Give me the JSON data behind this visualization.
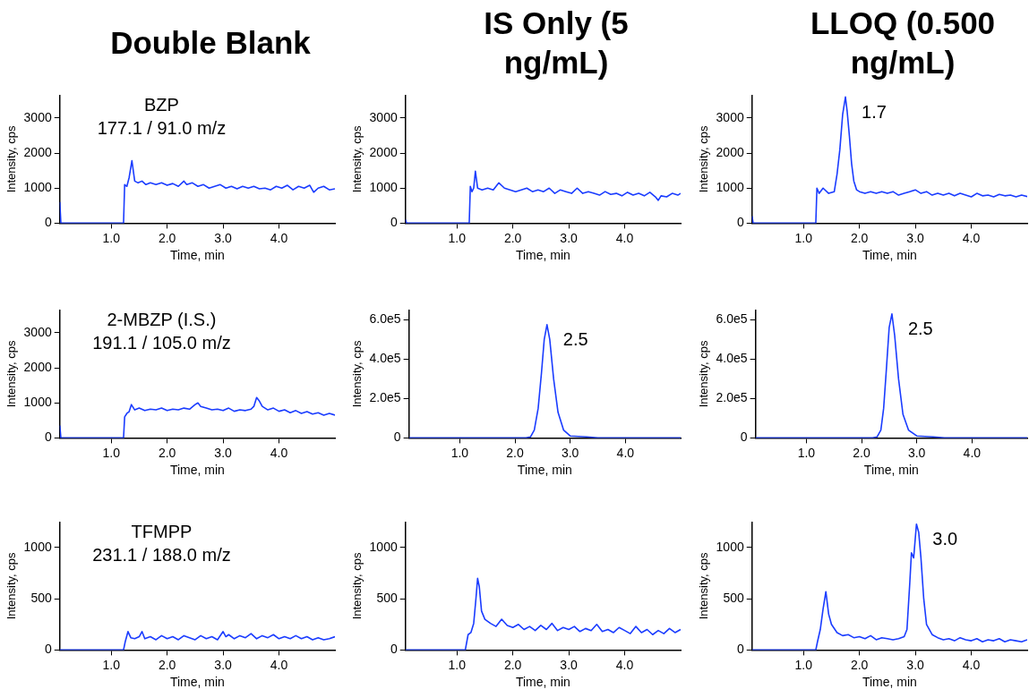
{
  "chart_data": [
    {
      "type": "line",
      "title": "Double Blank",
      "xlabel": "Time, min",
      "ylabel": "Intensity, cps",
      "color": "#1a3cff",
      "xlim": [
        0.08,
        5.0
      ],
      "ylim": [
        0,
        3650
      ],
      "xticks": [
        {
          "value": 1,
          "label": "1.0"
        },
        {
          "value": 2,
          "label": "2.0"
        },
        {
          "value": 3,
          "label": "3.0"
        },
        {
          "value": 4,
          "label": "4.0"
        }
      ],
      "yticks": [
        0,
        1000,
        2000,
        3000
      ],
      "annotations": [
        "BZP",
        "177.1 / 91.0 m/z"
      ],
      "x": [
        0.08,
        0.1,
        1.22,
        1.24,
        1.28,
        1.32,
        1.37,
        1.42,
        1.48,
        1.55,
        1.62,
        1.7,
        1.8,
        1.9,
        2.0,
        2.1,
        2.2,
        2.3,
        2.35,
        2.45,
        2.55,
        2.65,
        2.75,
        2.85,
        2.95,
        3.05,
        3.15,
        3.25,
        3.35,
        3.45,
        3.55,
        3.65,
        3.75,
        3.85,
        3.95,
        4.05,
        4.15,
        4.25,
        4.35,
        4.45,
        4.55,
        4.62,
        4.7,
        4.8,
        4.9,
        5.0
      ],
      "values": [
        600,
        0,
        0,
        1100,
        1050,
        1300,
        1780,
        1200,
        1150,
        1200,
        1100,
        1150,
        1100,
        1150,
        1080,
        1130,
        1050,
        1200,
        1100,
        1150,
        1050,
        1100,
        1000,
        1050,
        1100,
        1000,
        1050,
        980,
        1050,
        1000,
        1050,
        980,
        1000,
        950,
        1050,
        1000,
        1080,
        950,
        1050,
        1000,
        1080,
        880,
        1000,
        1050,
        950,
        980
      ]
    },
    {
      "type": "line",
      "title": "IS Only (5 ng/mL)",
      "xlabel": "Time, min",
      "ylabel": "Intensity, cps",
      "color": "#1a3cff",
      "xlim": [
        0.08,
        5.0
      ],
      "ylim": [
        0,
        3650
      ],
      "xticks": [
        {
          "value": 1,
          "label": "1.0"
        },
        {
          "value": 2,
          "label": "2.0"
        },
        {
          "value": 3,
          "label": "3.0"
        },
        {
          "value": 4,
          "label": "4.0"
        }
      ],
      "yticks": [
        0,
        1000,
        2000,
        3000
      ],
      "x": [
        0.08,
        0.1,
        1.22,
        1.24,
        1.27,
        1.3,
        1.33,
        1.37,
        1.45,
        1.55,
        1.65,
        1.75,
        1.85,
        1.95,
        2.05,
        2.15,
        2.25,
        2.35,
        2.45,
        2.55,
        2.65,
        2.75,
        2.85,
        2.95,
        3.05,
        3.15,
        3.25,
        3.35,
        3.45,
        3.55,
        3.65,
        3.75,
        3.85,
        3.95,
        4.05,
        4.15,
        4.25,
        4.35,
        4.45,
        4.55,
        4.6,
        4.65,
        4.75,
        4.85,
        4.95,
        5.0
      ],
      "values": [
        100,
        0,
        0,
        1050,
        900,
        1000,
        1480,
        1000,
        950,
        1000,
        950,
        1150,
        1000,
        950,
        900,
        950,
        1000,
        900,
        950,
        900,
        1000,
        850,
        950,
        900,
        850,
        1000,
        850,
        900,
        850,
        800,
        900,
        820,
        850,
        780,
        880,
        800,
        850,
        780,
        880,
        750,
        650,
        780,
        750,
        850,
        800,
        850
      ]
    },
    {
      "type": "line",
      "title": "LLOQ (0.500 ng/mL)",
      "xlabel": "Time, min",
      "ylabel": "Intensity, cps",
      "color": "#1a3cff",
      "xlim": [
        0.08,
        5.0
      ],
      "ylim": [
        0,
        3650
      ],
      "xticks": [
        {
          "value": 1,
          "label": "1.0"
        },
        {
          "value": 2,
          "label": "2.0"
        },
        {
          "value": 3,
          "label": "3.0"
        },
        {
          "value": 4,
          "label": "4.0"
        }
      ],
      "yticks": [
        0,
        1000,
        2000,
        3000
      ],
      "annotations": [
        {
          "text": "1.7",
          "x": 1.75,
          "y": 3600
        }
      ],
      "x": [
        0.08,
        0.1,
        1.22,
        1.24,
        1.28,
        1.35,
        1.45,
        1.55,
        1.6,
        1.65,
        1.7,
        1.75,
        1.78,
        1.82,
        1.86,
        1.9,
        1.95,
        2.0,
        2.1,
        2.2,
        2.3,
        2.4,
        2.5,
        2.6,
        2.7,
        2.8,
        2.9,
        3.0,
        3.1,
        3.2,
        3.3,
        3.4,
        3.5,
        3.6,
        3.7,
        3.8,
        3.9,
        4.0,
        4.1,
        4.2,
        4.3,
        4.4,
        4.5,
        4.6,
        4.7,
        4.8,
        4.9,
        5.0
      ],
      "values": [
        200,
        0,
        0,
        1000,
        850,
        1000,
        850,
        900,
        1400,
        2100,
        3100,
        3600,
        3200,
        2500,
        1700,
        1200,
        950,
        900,
        850,
        900,
        850,
        900,
        850,
        900,
        800,
        850,
        900,
        950,
        850,
        900,
        800,
        850,
        800,
        850,
        780,
        850,
        800,
        750,
        850,
        780,
        800,
        750,
        820,
        780,
        800,
        750,
        800,
        760
      ]
    },
    {
      "type": "line",
      "xlabel": "Time, min",
      "ylabel": "Intensity, cps",
      "color": "#1a3cff",
      "xlim": [
        0.08,
        5.0
      ],
      "ylim": [
        0,
        3650
      ],
      "xticks": [
        {
          "value": 1,
          "label": "1.0"
        },
        {
          "value": 2,
          "label": "2.0"
        },
        {
          "value": 3,
          "label": "3.0"
        },
        {
          "value": 4,
          "label": "4.0"
        }
      ],
      "yticks": [
        0,
        1000,
        2000,
        3000
      ],
      "annotations": [
        "2-MBZP (I.S.)",
        "191.1 / 105.0 m/z"
      ],
      "x": [
        0.08,
        0.1,
        1.22,
        1.24,
        1.28,
        1.32,
        1.36,
        1.42,
        1.5,
        1.6,
        1.7,
        1.8,
        1.9,
        2.0,
        2.1,
        2.2,
        2.3,
        2.4,
        2.5,
        2.55,
        2.6,
        2.7,
        2.8,
        2.9,
        3.0,
        3.1,
        3.2,
        3.3,
        3.4,
        3.5,
        3.55,
        3.6,
        3.65,
        3.7,
        3.8,
        3.9,
        4.0,
        4.1,
        4.2,
        4.3,
        4.4,
        4.5,
        4.6,
        4.7,
        4.8,
        4.9,
        5.0
      ],
      "values": [
        350,
        0,
        0,
        600,
        700,
        750,
        950,
        800,
        850,
        780,
        820,
        800,
        850,
        780,
        820,
        800,
        850,
        820,
        950,
        1000,
        900,
        850,
        800,
        820,
        780,
        850,
        760,
        800,
        780,
        820,
        900,
        1150,
        1050,
        900,
        800,
        850,
        760,
        800,
        720,
        780,
        700,
        750,
        680,
        720,
        650,
        700,
        650
      ]
    },
    {
      "type": "line",
      "xlabel": "Time, min",
      "ylabel": "Intensity, cps",
      "color": "#1a3cff",
      "xlim": [
        0.08,
        5.0
      ],
      "ylim": [
        0,
        650000
      ],
      "xticks": [
        {
          "value": 1,
          "label": "1.0"
        },
        {
          "value": 2,
          "label": "2.0"
        },
        {
          "value": 3,
          "label": "3.0"
        },
        {
          "value": 4,
          "label": "4.0"
        }
      ],
      "yticks": [
        0,
        {
          "value": 200000,
          "label": "2.0e5"
        },
        {
          "value": 400000,
          "label": "4.0e5"
        },
        {
          "value": 600000,
          "label": "6.0e5"
        }
      ],
      "annotations": [
        {
          "text": "2.5",
          "x": 2.58,
          "y": 575000
        }
      ],
      "x": [
        0.08,
        1.0,
        2.2,
        2.28,
        2.35,
        2.42,
        2.48,
        2.53,
        2.58,
        2.63,
        2.7,
        2.78,
        2.88,
        3.0,
        3.3,
        3.5,
        4.5,
        5.0
      ],
      "values": [
        0,
        0,
        0,
        5000,
        40000,
        150000,
        330000,
        500000,
        575000,
        500000,
        300000,
        130000,
        40000,
        10000,
        5000,
        0,
        0,
        0
      ]
    },
    {
      "type": "line",
      "xlabel": "Time, min",
      "ylabel": "Intensity, cps",
      "color": "#1a3cff",
      "xlim": [
        0.08,
        5.0
      ],
      "ylim": [
        0,
        650000
      ],
      "xticks": [
        {
          "value": 1,
          "label": "1.0"
        },
        {
          "value": 2,
          "label": "2.0"
        },
        {
          "value": 3,
          "label": "3.0"
        },
        {
          "value": 4,
          "label": "4.0"
        }
      ],
      "yticks": [
        0,
        {
          "value": 200000,
          "label": "2.0e5"
        },
        {
          "value": 400000,
          "label": "4.0e5"
        },
        {
          "value": 600000,
          "label": "6.0e5"
        }
      ],
      "annotations": [
        {
          "text": "2.5",
          "x": 2.55,
          "y": 630000
        }
      ],
      "x": [
        0.08,
        1.0,
        2.2,
        2.28,
        2.35,
        2.4,
        2.45,
        2.5,
        2.55,
        2.6,
        2.67,
        2.75,
        2.85,
        3.0,
        3.3,
        3.5,
        4.5,
        5.0
      ],
      "values": [
        0,
        0,
        0,
        5000,
        40000,
        150000,
        350000,
        560000,
        630000,
        520000,
        300000,
        120000,
        40000,
        10000,
        5000,
        0,
        0,
        0
      ]
    },
    {
      "type": "line",
      "xlabel": "Time, min",
      "ylabel": "Intensity, cps",
      "color": "#1a3cff",
      "xlim": [
        0.08,
        5.0
      ],
      "ylim": [
        0,
        1250
      ],
      "xticks": [
        {
          "value": 1,
          "label": "1.0"
        },
        {
          "value": 2,
          "label": "2.0"
        },
        {
          "value": 3,
          "label": "3.0"
        },
        {
          "value": 4,
          "label": "4.0"
        }
      ],
      "yticks": [
        0,
        500,
        1000
      ],
      "annotations": [
        "TFMPP",
        "231.1 / 188.0 m/z"
      ],
      "x": [
        0.08,
        1.22,
        1.25,
        1.3,
        1.35,
        1.42,
        1.5,
        1.55,
        1.6,
        1.7,
        1.8,
        1.9,
        2.0,
        2.1,
        2.2,
        2.3,
        2.4,
        2.5,
        2.6,
        2.7,
        2.8,
        2.9,
        3.0,
        3.05,
        3.1,
        3.2,
        3.3,
        3.4,
        3.5,
        3.6,
        3.7,
        3.8,
        3.9,
        4.0,
        4.1,
        4.2,
        4.3,
        4.4,
        4.5,
        4.6,
        4.7,
        4.8,
        4.9,
        5.0
      ],
      "values": [
        0,
        0,
        80,
        180,
        120,
        110,
        130,
        180,
        110,
        130,
        100,
        140,
        110,
        130,
        100,
        140,
        120,
        100,
        140,
        110,
        130,
        100,
        180,
        130,
        150,
        110,
        140,
        120,
        160,
        110,
        140,
        120,
        150,
        110,
        130,
        110,
        140,
        110,
        130,
        100,
        120,
        100,
        110,
        130
      ]
    },
    {
      "type": "line",
      "xlabel": "Time, min",
      "ylabel": "Intensity, cps",
      "color": "#1a3cff",
      "xlim": [
        0.08,
        5.0
      ],
      "ylim": [
        0,
        1250
      ],
      "xticks": [
        {
          "value": 1,
          "label": "1.0"
        },
        {
          "value": 2,
          "label": "2.0"
        },
        {
          "value": 3,
          "label": "3.0"
        },
        {
          "value": 4,
          "label": "4.0"
        }
      ],
      "yticks": [
        0,
        500,
        1000
      ],
      "x": [
        0.08,
        1.15,
        1.2,
        1.25,
        1.3,
        1.34,
        1.37,
        1.4,
        1.44,
        1.5,
        1.6,
        1.7,
        1.8,
        1.9,
        2.0,
        2.1,
        2.2,
        2.3,
        2.4,
        2.5,
        2.6,
        2.7,
        2.8,
        2.9,
        3.0,
        3.1,
        3.2,
        3.3,
        3.4,
        3.5,
        3.6,
        3.7,
        3.8,
        3.9,
        4.0,
        4.1,
        4.2,
        4.3,
        4.4,
        4.5,
        4.6,
        4.7,
        4.8,
        4.9,
        5.0
      ],
      "values": [
        0,
        0,
        150,
        170,
        260,
        500,
        700,
        620,
        380,
        300,
        260,
        230,
        300,
        240,
        220,
        250,
        200,
        230,
        190,
        240,
        200,
        260,
        190,
        220,
        200,
        230,
        180,
        210,
        190,
        250,
        180,
        200,
        170,
        220,
        190,
        160,
        230,
        170,
        200,
        150,
        190,
        160,
        210,
        170,
        200
      ]
    },
    {
      "type": "line",
      "xlabel": "Time, min",
      "ylabel": "Intensity, cps",
      "color": "#1a3cff",
      "xlim": [
        0.08,
        5.0
      ],
      "ylim": [
        0,
        1250
      ],
      "xticks": [
        {
          "value": 1,
          "label": "1.0"
        },
        {
          "value": 2,
          "label": "2.0"
        },
        {
          "value": 3,
          "label": "3.0"
        },
        {
          "value": 4,
          "label": "4.0"
        }
      ],
      "yticks": [
        0,
        500,
        1000
      ],
      "annotations": [
        {
          "text": "3.0",
          "x": 3.02,
          "y": 1230
        }
      ],
      "x": [
        0.08,
        1.22,
        1.25,
        1.3,
        1.35,
        1.4,
        1.45,
        1.5,
        1.6,
        1.7,
        1.8,
        1.9,
        2.0,
        2.1,
        2.2,
        2.3,
        2.4,
        2.5,
        2.6,
        2.7,
        2.8,
        2.85,
        2.9,
        2.93,
        2.97,
        3.02,
        3.06,
        3.1,
        3.15,
        3.2,
        3.3,
        3.4,
        3.5,
        3.6,
        3.7,
        3.8,
        3.9,
        4.0,
        4.1,
        4.2,
        4.3,
        4.4,
        4.5,
        4.6,
        4.7,
        4.8,
        4.9,
        5.0
      ],
      "values": [
        0,
        0,
        80,
        200,
        400,
        570,
        350,
        250,
        170,
        140,
        150,
        120,
        130,
        110,
        140,
        100,
        120,
        110,
        100,
        110,
        130,
        200,
        650,
        950,
        900,
        1230,
        1150,
        900,
        500,
        250,
        150,
        120,
        100,
        110,
        90,
        120,
        100,
        90,
        110,
        80,
        100,
        90,
        110,
        80,
        100,
        90,
        80,
        100
      ]
    }
  ]
}
